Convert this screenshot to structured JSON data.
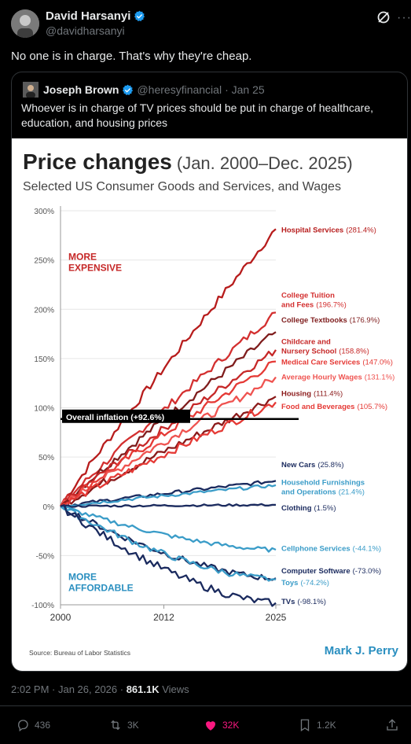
{
  "author": {
    "name": "David Harsanyi",
    "handle": "@davidharsanyi",
    "text": "No one is in charge. That's why they're cheap."
  },
  "quote": {
    "name": "Joseph Brown",
    "handle": "@heresyfinancial",
    "date": "· Jan 25",
    "text": "Whoever is in charge of TV prices should be put in charge of healthcare, education, and housing prices"
  },
  "chart_data": {
    "type": "line",
    "title": "Price changes",
    "title_range": "(Jan. 2000–Dec. 2025)",
    "subtitle": "Selected US Consumer Goods and Services, and Wages",
    "y_ticks": [
      "300%",
      "250%",
      "200%",
      "150%",
      "100%",
      "50%",
      "0%",
      "-50%",
      "-100%"
    ],
    "ylim": [
      -100,
      300
    ],
    "x_ticks": [
      "2000",
      "2012",
      "2025"
    ],
    "xlim": [
      2000,
      2025
    ],
    "label_more": [
      "MORE",
      "EXPENSIVE"
    ],
    "label_less": [
      "MORE",
      "AFFORDABLE"
    ],
    "inflation_label": "Overall inflation (+92.6%)",
    "inflation_value": 92.6,
    "source": "Source: Bureau of Labor Statistics",
    "credit": "Mark J. Perry",
    "series": [
      {
        "name": "Hospital Services",
        "pct": "(281.4%)",
        "value": 281.4,
        "color": "#b71c1c"
      },
      {
        "name": "College Tuition and Fees",
        "lines": [
          "College Tuition",
          "and Fees"
        ],
        "pct": "(196.7%)",
        "value": 196.7,
        "color": "#d32f2f"
      },
      {
        "name": "College Textbooks",
        "pct": "(176.9%)",
        "value": 176.9,
        "color": "#7f1d1d"
      },
      {
        "name": "Childcare and Nursery School",
        "lines": [
          "Childcare and",
          "Nursery School"
        ],
        "pct": "(158.8%)",
        "value": 158.8,
        "color": "#c62828"
      },
      {
        "name": "Medical Care Services",
        "pct": "(147.0%)",
        "value": 147.0,
        "color": "#e53935"
      },
      {
        "name": "Average Hourly Wages",
        "pct": "(131.1%)",
        "value": 131.1,
        "color": "#ef5350"
      },
      {
        "name": "Housing",
        "pct": "(111.4%)",
        "value": 111.4,
        "color": "#8b1a1a"
      },
      {
        "name": "Food and Beverages",
        "pct": "(105.7%)",
        "value": 105.7,
        "color": "#e53935"
      },
      {
        "name": "New Cars",
        "pct": "(25.8%)",
        "value": 25.8,
        "color": "#1a2a5e"
      },
      {
        "name": "Household Furnishings and Operations",
        "lines": [
          "Household Furnishings",
          "and Operations"
        ],
        "pct": "(21.4%)",
        "value": 21.4,
        "color": "#3a9cc8"
      },
      {
        "name": "Clothing",
        "pct": "(1.5%)",
        "value": 1.5,
        "color": "#1a2a5e"
      },
      {
        "name": "Cellphone Services",
        "pct": "(-44.1%)",
        "value": -44.1,
        "color": "#3a9cc8"
      },
      {
        "name": "Computer Software",
        "pct": "(-73.0%)",
        "value": -73.0,
        "color": "#1a2a5e"
      },
      {
        "name": "Toys",
        "pct": "(-74.2%)",
        "value": -74.2,
        "color": "#3a9cc8"
      },
      {
        "name": "TVs",
        "pct": "(-98.1%)",
        "value": -98.1,
        "color": "#1a2a5e"
      }
    ]
  },
  "meta": {
    "time": "2:02 PM · Jan 26, 2026 · ",
    "views_count": "861.1K",
    "views_label": " Views"
  },
  "actions": {
    "replies": "436",
    "reposts": "3K",
    "likes": "32K",
    "bookmarks": "1.2K"
  }
}
